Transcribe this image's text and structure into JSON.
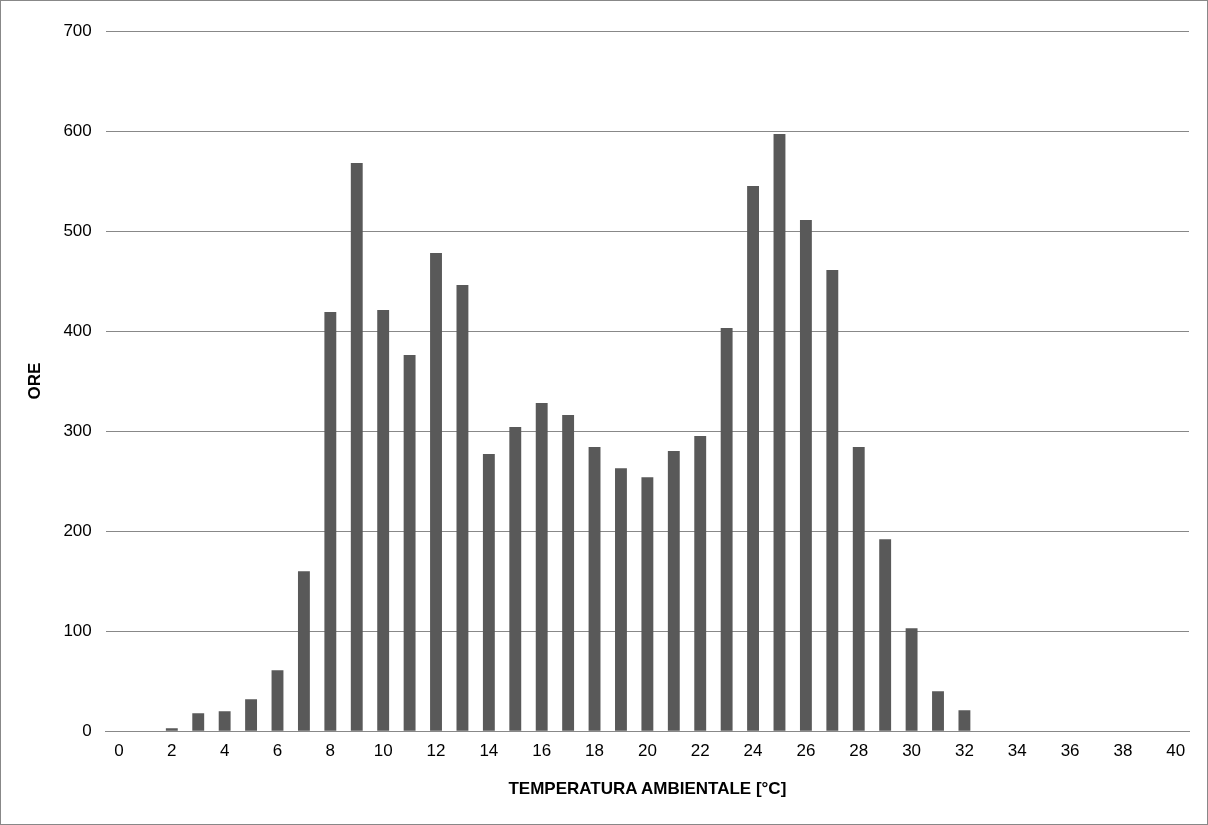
{
  "chart_data": {
    "type": "bar",
    "xlabel": "TEMPERATURA AMBIENTALE [°C]",
    "ylabel": "ORE",
    "x": [
      0,
      1,
      2,
      3,
      4,
      5,
      6,
      7,
      8,
      9,
      10,
      11,
      12,
      13,
      14,
      15,
      16,
      17,
      18,
      19,
      20,
      21,
      22,
      23,
      24,
      25,
      26,
      27,
      28,
      29,
      30,
      31,
      32,
      33,
      34,
      35,
      36,
      37,
      38,
      39,
      40
    ],
    "values": [
      0,
      0,
      3,
      18,
      20,
      32,
      61,
      160,
      419,
      568,
      421,
      376,
      478,
      446,
      277,
      304,
      328,
      316,
      284,
      263,
      254,
      280,
      295,
      403,
      545,
      597,
      511,
      461,
      284,
      192,
      103,
      40,
      21,
      0,
      0,
      0,
      0,
      0,
      0,
      0,
      0
    ],
    "color": "#595959",
    "xlim": [
      -0.5,
      40.5
    ],
    "xticks": [
      0,
      2,
      4,
      6,
      8,
      10,
      12,
      14,
      16,
      18,
      20,
      22,
      24,
      26,
      28,
      30,
      32,
      34,
      36,
      38,
      40
    ],
    "ylim": [
      0,
      700
    ],
    "yticks": [
      0,
      100,
      200,
      300,
      400,
      500,
      600,
      700
    ],
    "grid": "y",
    "legend": false
  }
}
